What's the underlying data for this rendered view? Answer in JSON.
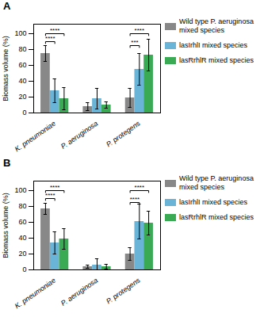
{
  "chart_data": [
    {
      "type": "bar",
      "title": "A",
      "categories": [
        "K. pneumoniae",
        "P. aeruginosa",
        "P. protegens"
      ],
      "series": [
        {
          "name": "Wild type P. aeruginosa\nmixed species",
          "color": "#888888",
          "values": [
            75,
            8,
            19
          ],
          "errors": [
            10,
            5,
            12
          ]
        },
        {
          "name": "lasIrhlI mixed species",
          "color": "#6ab4d8",
          "values": [
            28,
            18,
            55
          ],
          "errors": [
            15,
            13,
            20
          ]
        },
        {
          "name": "lasRrhlR mixed species",
          "color": "#3aaa55",
          "values": [
            18,
            10,
            73
          ],
          "errors": [
            14,
            4,
            20
          ]
        }
      ],
      "ylabel": "Biomass volume (%)",
      "ylim": [
        0,
        112
      ],
      "yticks": [
        0,
        20,
        40,
        60,
        80,
        100
      ],
      "annotations": [
        {
          "text": "****",
          "category": "K. pneumoniae",
          "from": "Wild type P. aeruginosa\nmixed species",
          "to": "lasIrhlI mixed species",
          "y": 90
        },
        {
          "text": "****",
          "category": "K. pneumoniae",
          "from": "Wild type P. aeruginosa\nmixed species",
          "to": "lasRrhlR mixed species",
          "y": 100
        },
        {
          "text": "***",
          "category": "P. protegens",
          "from": "Wild type P. aeruginosa\nmixed species",
          "to": "lasIrhlI mixed species",
          "y": 85
        },
        {
          "text": "****",
          "category": "P. protegens",
          "from": "Wild type P. aeruginosa\nmixed species",
          "to": "lasRrhlR mixed species",
          "y": 100
        }
      ]
    },
    {
      "type": "bar",
      "title": "B",
      "categories": [
        "K. pneumoniae",
        "P. aeruginosa",
        "P. protegens"
      ],
      "series": [
        {
          "name": "Wild type P. aeruginosa\nmixed species",
          "color": "#888888",
          "values": [
            77,
            4,
            20
          ],
          "errors": [
            7,
            2,
            8
          ]
        },
        {
          "name": "lasIrhlI mixed species",
          "color": "#6ab4d8",
          "values": [
            34,
            6,
            61
          ],
          "errors": [
            14,
            8,
            22
          ]
        },
        {
          "name": "lasRrhlR mixed species",
          "color": "#3aaa55",
          "values": [
            39,
            4,
            59
          ],
          "errors": [
            13,
            3,
            15
          ]
        }
      ],
      "ylabel": "Biomass volume (%)",
      "ylim": [
        0,
        112
      ],
      "yticks": [
        0,
        20,
        40,
        60,
        80,
        100
      ],
      "annotations": [
        {
          "text": "****",
          "category": "K. pneumoniae",
          "from": "Wild type P. aeruginosa\nmixed species",
          "to": "lasIrhlI mixed species",
          "y": 90
        },
        {
          "text": "****",
          "category": "K. pneumoniae",
          "from": "Wild type P. aeruginosa\nmixed species",
          "to": "lasRrhlR mixed species",
          "y": 100
        },
        {
          "text": "****",
          "category": "P. protegens",
          "from": "Wild type P. aeruginosa\nmixed species",
          "to": "lasIrhlI mixed species",
          "y": 85
        },
        {
          "text": "****",
          "category": "P. protegens",
          "from": "Wild type P. aeruginosa\nmixed species",
          "to": "lasRrhlR mixed species",
          "y": 100
        }
      ]
    }
  ]
}
